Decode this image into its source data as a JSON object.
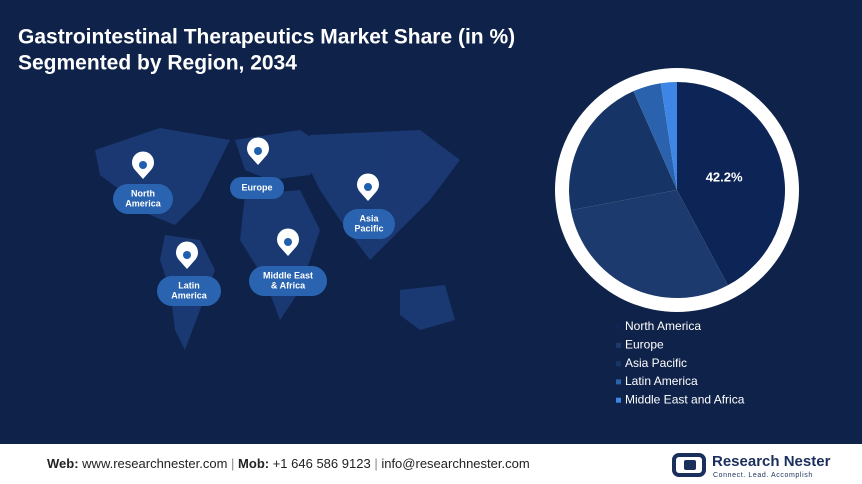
{
  "chart_data": {
    "type": "pie",
    "title": "Gastrointestinal Therapeutics Market Share (in %)",
    "subtitle": "Segmented by Region, 2034",
    "categories": [
      "North America",
      "Europe",
      "Asia Pacific",
      "Latin America",
      "Middle East and Africa"
    ],
    "values": [
      42.2,
      29.8,
      21.4,
      4.2,
      2.4
    ],
    "value_labels": [
      "42.2%",
      null,
      null,
      null,
      null
    ],
    "colors": [
      "#0c2456",
      "#1c3a6e",
      "#163566",
      "#2b62ad",
      "#3d86e6"
    ],
    "legend": "bottom"
  },
  "map_labels": [
    [
      "North",
      "America"
    ],
    [
      "Europe"
    ],
    [
      "Asia",
      "Pacific"
    ],
    [
      "Latin",
      "America"
    ],
    [
      "Middle East",
      "& Africa"
    ]
  ],
  "footer": {
    "web_label": "Web:",
    "web": "www.researchnester.com",
    "mob_label": "Mob:",
    "mob": "+1 646 586 9123",
    "email": "info@researchnester.com",
    "brand": "Research Nester",
    "tagline": "Connect. Lead. Accomplish"
  }
}
